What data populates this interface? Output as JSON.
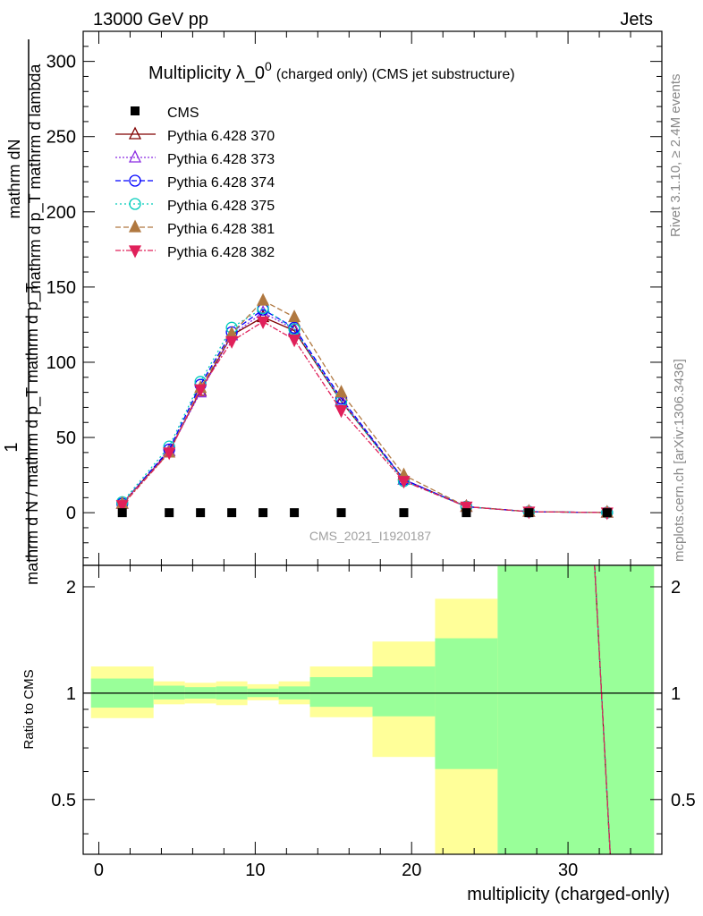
{
  "header": {
    "left": "13000 GeV pp",
    "right": "Jets"
  },
  "side": {
    "rivet": "Rivet 3.1.10, ≥ 2.4M events",
    "mcplots": "mcplots.cern.ch [arXiv:1306.3436]"
  },
  "watermark": "CMS_2021_I1920187",
  "colors": {
    "band_inner": "#99ff99",
    "band_outer": "#ffff99"
  },
  "chart_data": [
    {
      "type": "line",
      "title": "Multiplicity λ_0",
      "title_sup": "0",
      "title_suffix": "(charged only) (CMS jet substructure)",
      "ylabel_top": "1",
      "ylabel_top2": "mathrm dN",
      "ylabel_mid": "mathrm d p_T mathrm d lambda",
      "ylabel_bot": "mathrm d N / mathrm d p_T mathrm d p_T",
      "xlim": [
        -1,
        36
      ],
      "ylim": [
        -35,
        320
      ],
      "yticks": [
        0,
        50,
        100,
        150,
        200,
        250,
        300
      ],
      "x": [
        1.5,
        4.5,
        6.5,
        8.5,
        10.5,
        12.5,
        15.5,
        19.5,
        23.5,
        27.5,
        32.5
      ],
      "reference": {
        "name": "CMS",
        "color": "#000000",
        "values": [
          0,
          0,
          0,
          0,
          0,
          0,
          0,
          0,
          0,
          0,
          0
        ]
      },
      "series": [
        {
          "name": "Pythia 6.428 370",
          "color": "#800000",
          "marker": "triangle-open",
          "dash": "",
          "values": [
            6,
            41,
            81,
            118,
            130,
            121,
            74,
            22,
            4,
            0.7,
            0.1
          ]
        },
        {
          "name": "Pythia 6.428 373",
          "color": "#8a2be2",
          "marker": "triangle-open",
          "dash": "2,2",
          "values": [
            6,
            41,
            80,
            118,
            133,
            122,
            75,
            22,
            4,
            0.7,
            0.1
          ]
        },
        {
          "name": "Pythia 6.428 374",
          "color": "#0000ff",
          "marker": "circle-open",
          "dash": "6,3",
          "values": [
            6,
            42,
            85,
            120,
            135,
            123,
            76,
            22,
            4,
            0.7,
            0.1
          ]
        },
        {
          "name": "Pythia 6.428 375",
          "color": "#00ccbb",
          "marker": "circle-open",
          "dash": "2,3",
          "values": [
            7,
            44,
            87,
            123,
            136,
            122,
            74,
            21,
            4,
            0.7,
            0.1
          ]
        },
        {
          "name": "Pythia 6.428 381",
          "color": "#b07840",
          "marker": "triangle-filled",
          "dash": "6,3",
          "values": [
            6,
            40,
            83,
            119,
            141,
            130,
            80,
            25,
            4,
            0.7,
            0.1
          ]
        },
        {
          "name": "Pythia 6.428 382",
          "color": "#e0205a",
          "marker": "triangle-down-filled",
          "dash": "6,2,2,2",
          "values": [
            5,
            40,
            82,
            114,
            127,
            115,
            68,
            21,
            4,
            0.7,
            0.1
          ]
        }
      ]
    },
    {
      "type": "area",
      "xlabel": "multiplicity (charged-only)",
      "ylabel": "Ratio to CMS",
      "xlim": [
        -1,
        36
      ],
      "ylim": [
        0.35,
        2.3
      ],
      "yticks": [
        0.5,
        1,
        2
      ],
      "ytick_labels": [
        "0.5",
        "1",
        "2"
      ],
      "xticks": [
        0,
        10,
        20,
        30
      ],
      "ratio_bands": [
        {
          "x0": -0.5,
          "x1": 3.5,
          "inner": [
            0.91,
            1.1
          ],
          "outer": [
            0.85,
            1.19
          ]
        },
        {
          "x0": 3.5,
          "x1": 5.5,
          "inner": [
            0.96,
            1.05
          ],
          "outer": [
            0.93,
            1.08
          ]
        },
        {
          "x0": 5.5,
          "x1": 7.5,
          "inner": [
            0.965,
            1.04
          ],
          "outer": [
            0.935,
            1.07
          ]
        },
        {
          "x0": 7.5,
          "x1": 9.5,
          "inner": [
            0.96,
            1.045
          ],
          "outer": [
            0.925,
            1.08
          ]
        },
        {
          "x0": 9.5,
          "x1": 11.5,
          "inner": [
            0.975,
            1.03
          ],
          "outer": [
            0.955,
            1.06
          ]
        },
        {
          "x0": 11.5,
          "x1": 13.5,
          "inner": [
            0.96,
            1.045
          ],
          "outer": [
            0.93,
            1.08
          ]
        },
        {
          "x0": 13.5,
          "x1": 17.5,
          "inner": [
            0.915,
            1.11
          ],
          "outer": [
            0.855,
            1.19
          ]
        },
        {
          "x0": 17.5,
          "x1": 21.5,
          "inner": [
            0.86,
            1.19
          ],
          "outer": [
            0.66,
            1.4
          ]
        },
        {
          "x0": 21.5,
          "x1": 25.5,
          "inner": [
            0.61,
            1.43
          ],
          "outer": [
            0.35,
            1.85
          ]
        },
        {
          "x0": 25.5,
          "x1": 35.5,
          "inner": [
            0.35,
            2.3
          ],
          "outer": [
            0.35,
            2.3
          ]
        }
      ],
      "steep_line": {
        "x": [
          31.7,
          32.7
        ],
        "y": [
          2.3,
          0.35
        ]
      }
    }
  ]
}
